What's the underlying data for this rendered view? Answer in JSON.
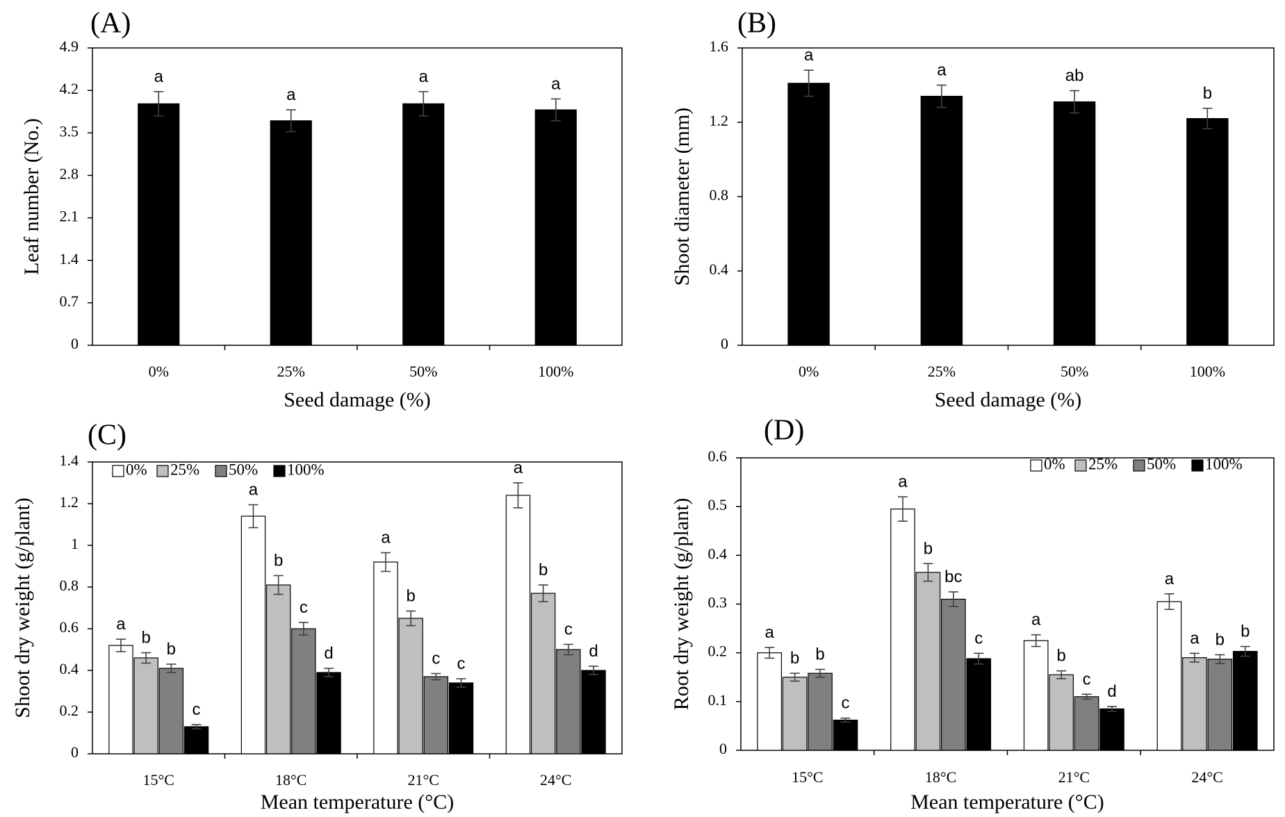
{
  "chart_data": [
    {
      "type": "bar",
      "panel_label": "(A)",
      "categories": [
        "0%",
        "25%",
        "50%",
        "100%"
      ],
      "series": [
        {
          "values": [
            3.98,
            3.7,
            3.98,
            3.88
          ],
          "errors": [
            0.2,
            0.18,
            0.2,
            0.18
          ],
          "labels": [
            "a",
            "a",
            "a",
            "a"
          ],
          "color": "#000000"
        }
      ],
      "xlabel": "Seed damage (%)",
      "ylabel": "Leaf number (No.)",
      "ylim": [
        0,
        4.9
      ],
      "yticks": [
        0,
        0.7,
        1.4,
        2.1,
        2.8,
        3.5,
        4.2,
        4.9
      ],
      "yticklabels": [
        "0",
        "0.7",
        "1.4",
        "2.1",
        "2.8",
        "3.5",
        "4.2",
        "4.9"
      ],
      "grid": false,
      "legend": null
    },
    {
      "type": "bar",
      "panel_label": "(B)",
      "categories": [
        "0%",
        "25%",
        "50%",
        "100%"
      ],
      "series": [
        {
          "values": [
            1.41,
            1.34,
            1.31,
            1.22
          ],
          "errors": [
            0.07,
            0.06,
            0.06,
            0.055
          ],
          "labels": [
            "a",
            "a",
            "ab",
            "b"
          ],
          "color": "#000000"
        }
      ],
      "xlabel": "Seed damage (%)",
      "ylabel": "Shoot diameter (mm)",
      "ylim": [
        0,
        1.6
      ],
      "yticks": [
        0,
        0.4,
        0.8,
        1.2,
        1.6
      ],
      "yticklabels": [
        "0",
        "0.4",
        "0.8",
        "1.2",
        "1.6"
      ],
      "grid": false,
      "legend": null
    },
    {
      "type": "bar",
      "panel_label": "(C)",
      "categories": [
        "15°C",
        "18°C",
        "21°C",
        "24°C"
      ],
      "series": [
        {
          "name": "0%",
          "values": [
            0.52,
            1.14,
            0.92,
            1.24
          ],
          "errors": [
            0.03,
            0.055,
            0.045,
            0.06
          ],
          "labels": [
            "a",
            "a",
            "a",
            "a"
          ],
          "color": "#ffffff"
        },
        {
          "name": "25%",
          "values": [
            0.46,
            0.81,
            0.65,
            0.77
          ],
          "errors": [
            0.025,
            0.045,
            0.035,
            0.04
          ],
          "labels": [
            "b",
            "b",
            "b",
            "b"
          ],
          "color": "#bfbfbf"
        },
        {
          "name": "50%",
          "values": [
            0.41,
            0.6,
            0.37,
            0.5
          ],
          "errors": [
            0.02,
            0.03,
            0.015,
            0.025
          ],
          "labels": [
            "b",
            "c",
            "c",
            "c"
          ],
          "color": "#808080"
        },
        {
          "name": "100%",
          "values": [
            0.13,
            0.39,
            0.34,
            0.4
          ],
          "errors": [
            0.01,
            0.02,
            0.02,
            0.02
          ],
          "labels": [
            "c",
            "d",
            "c",
            "d"
          ],
          "color": "#000000"
        }
      ],
      "xlabel": "Mean temperature (°C)",
      "ylabel": "Shoot dry weight (g/plant)",
      "ylim": [
        0,
        1.4
      ],
      "yticks": [
        0,
        0.2,
        0.4,
        0.6,
        0.8,
        1.0,
        1.2,
        1.4
      ],
      "yticklabels": [
        "0",
        "0.2",
        "0.4",
        "0.6",
        "0.8",
        "1",
        "1.2",
        "1.4"
      ],
      "grid": false,
      "legend": "top-left"
    },
    {
      "type": "bar",
      "panel_label": "(D)",
      "categories": [
        "15°C",
        "18°C",
        "21°C",
        "24°C"
      ],
      "series": [
        {
          "name": "0%",
          "values": [
            0.2,
            0.495,
            0.225,
            0.305
          ],
          "errors": [
            0.011,
            0.025,
            0.012,
            0.016
          ],
          "labels": [
            "a",
            "a",
            "a",
            "a"
          ],
          "color": "#ffffff"
        },
        {
          "name": "25%",
          "values": [
            0.15,
            0.365,
            0.155,
            0.19
          ],
          "errors": [
            0.008,
            0.018,
            0.008,
            0.009
          ],
          "labels": [
            "b",
            "b",
            "b",
            "a"
          ],
          "color": "#bfbfbf"
        },
        {
          "name": "50%",
          "values": [
            0.158,
            0.31,
            0.11,
            0.187
          ],
          "errors": [
            0.008,
            0.015,
            0.005,
            0.009
          ],
          "labels": [
            "b",
            "bc",
            "c",
            "b"
          ],
          "color": "#808080"
        },
        {
          "name": "100%",
          "values": [
            0.062,
            0.188,
            0.085,
            0.203
          ],
          "errors": [
            0.004,
            0.011,
            0.005,
            0.01
          ],
          "labels": [
            "c",
            "c",
            "d",
            "b"
          ],
          "color": "#000000"
        }
      ],
      "xlabel": "Mean temperature (°C)",
      "ylabel": "Root dry weight (g/plant)",
      "ylim": [
        0,
        0.6
      ],
      "yticks": [
        0,
        0.1,
        0.2,
        0.3,
        0.4,
        0.5,
        0.6
      ],
      "yticklabels": [
        "0",
        "0.1",
        "0.2",
        "0.3",
        "0.4",
        "0.5",
        "0.6"
      ],
      "grid": false,
      "legend": "top-right"
    }
  ]
}
